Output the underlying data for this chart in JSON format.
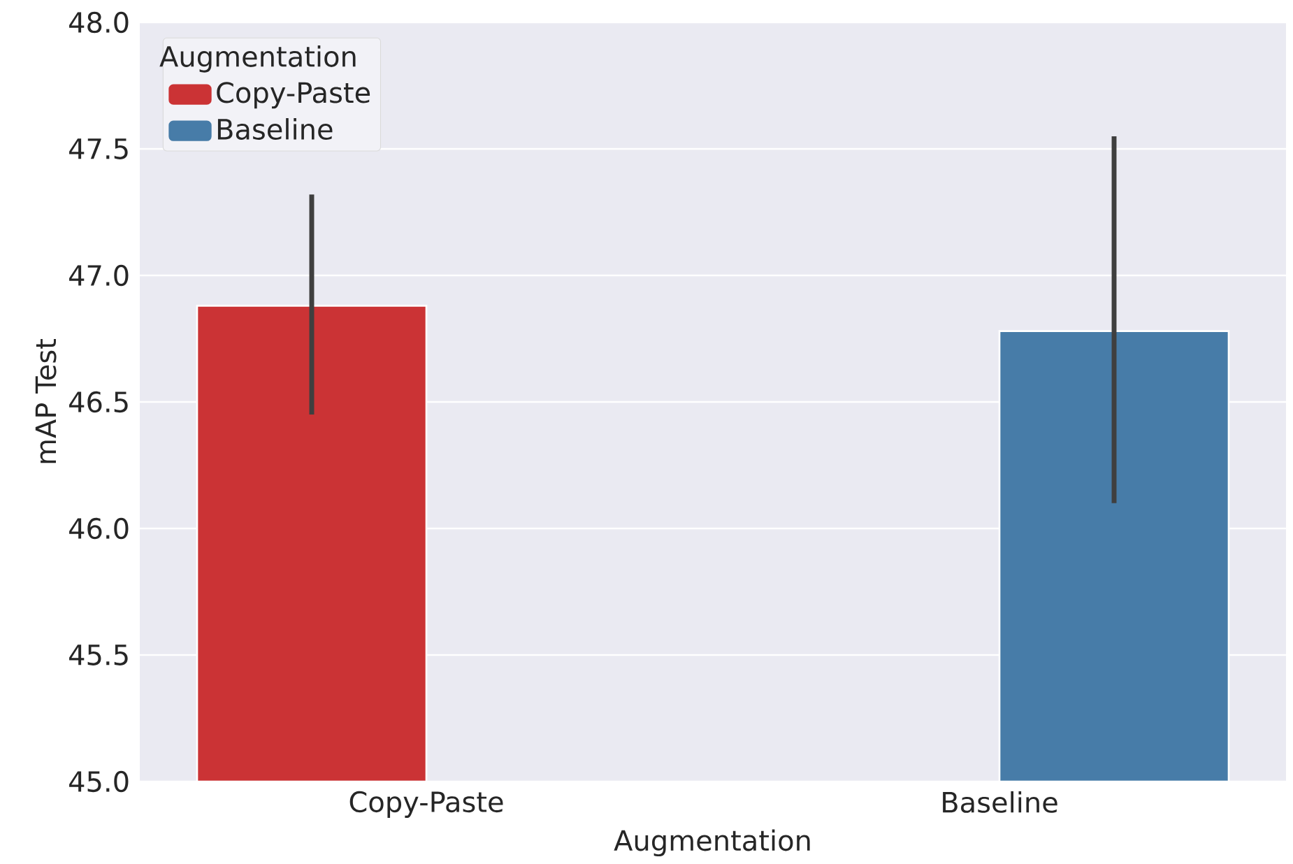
{
  "chart_data": {
    "type": "bar",
    "xlabel": "Augmentation",
    "ylabel": "mAP Test",
    "legend_title": "Augmentation",
    "categories": [
      "Copy-Paste",
      "Baseline"
    ],
    "series": [
      {
        "name": "Copy-Paste",
        "color": "#cb3335",
        "values": [
          46.88,
          null
        ],
        "errors": [
          [
            46.45,
            47.32
          ],
          null
        ]
      },
      {
        "name": "Baseline",
        "color": "#477ca8",
        "values": [
          null,
          46.78
        ],
        "errors": [
          null,
          [
            46.1,
            47.55
          ]
        ]
      }
    ],
    "ylim": [
      45.0,
      48.0
    ],
    "yticks": [
      {
        "value": 45.0,
        "label": "45.0"
      },
      {
        "value": 45.5,
        "label": "45.5"
      },
      {
        "value": 46.0,
        "label": "46.0"
      },
      {
        "value": 46.5,
        "label": "46.5"
      },
      {
        "value": 47.0,
        "label": "47.0"
      },
      {
        "value": 47.5,
        "label": "47.5"
      },
      {
        "value": 48.0,
        "label": "48.0"
      }
    ],
    "grid": "y",
    "legend": "top left"
  }
}
